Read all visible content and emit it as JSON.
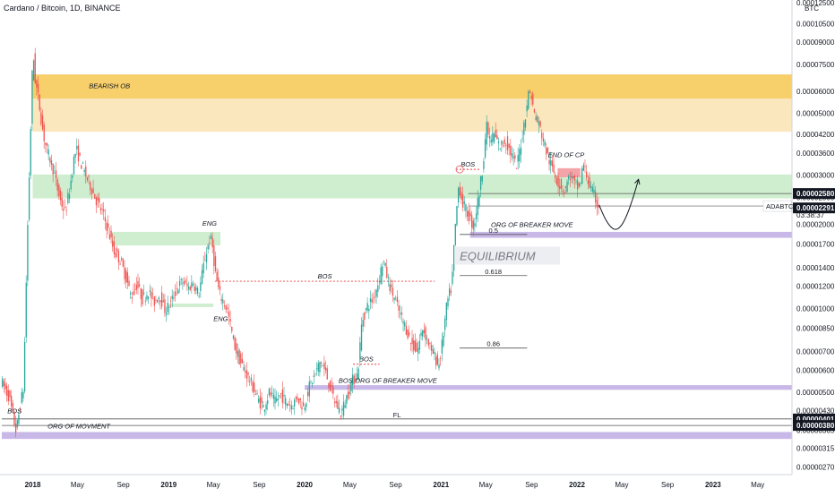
{
  "header": {
    "title": "Cardano / Bitcoin, 1D, BINANCE"
  },
  "axis": {
    "currency": "BTC"
  },
  "chart_data": {
    "type": "candlestick",
    "symbol": "ADABTC",
    "y_scale": "log",
    "x_tick_labels": [
      "2018",
      "May",
      "Sep",
      "2019",
      "May",
      "Sep",
      "2020",
      "May",
      "Sep",
      "2021",
      "May",
      "Sep",
      "2022",
      "May",
      "Sep",
      "2023",
      "May"
    ],
    "x_ticks": [
      "2018-01-01",
      "2018-05-01",
      "2018-09-01",
      "2019-01-01",
      "2019-05-01",
      "2019-09-01",
      "2020-01-01",
      "2020-05-01",
      "2020-09-01",
      "2021-01-01",
      "2021-05-01",
      "2021-09-01",
      "2022-01-01",
      "2022-05-01",
      "2022-09-01",
      "2023-01-01",
      "2023-05-01"
    ],
    "x_range": [
      "2017-10-10",
      "2023-08-01"
    ],
    "y_tick_labels": [
      "0.00012500",
      "0.00010500",
      "0.00009000",
      "0.00007500",
      "0.00006000",
      "0.00005000",
      "0.00004200",
      "0.00003600",
      "0.00003000",
      "0.00002500",
      "0.00002000",
      "0.00001700",
      "0.00001400",
      "0.00001200",
      "0.00001000",
      "0.00000850",
      "0.00000700",
      "0.00000600",
      "0.00000500",
      "0.00000430",
      "0.00000365",
      "0.00000315",
      "0.00000270"
    ],
    "y_range": [
      2.6e-06,
      0.000132
    ],
    "price_labels": [
      {
        "value": "0.00002580",
        "style": "dark"
      },
      {
        "value": "0.00002327",
        "style": "light",
        "symbol": "ADABTC",
        "countdown": "03:38:37"
      },
      {
        "value": "0.00002291",
        "style": "dark"
      },
      {
        "value": "0.00000401",
        "style": "dark"
      },
      {
        "value": "0.00000380",
        "style": "dark"
      }
    ],
    "path": [
      [
        "2017-10-10",
        5.5e-06
      ],
      [
        "2017-11-01",
        4.8e-06
      ],
      [
        "2017-11-20",
        3.6e-06
      ],
      [
        "2017-12-01",
        4.5e-06
      ],
      [
        "2017-12-10",
        5.2e-06
      ],
      [
        "2017-12-20",
        1.8e-05
      ],
      [
        "2017-12-28",
        4e-05
      ],
      [
        "2018-01-04",
        8.5e-05
      ],
      [
        "2018-01-10",
        6.6e-05
      ],
      [
        "2018-01-20",
        5.5e-05
      ],
      [
        "2018-02-01",
        4.2e-05
      ],
      [
        "2018-02-10",
        3.7e-05
      ],
      [
        "2018-02-20",
        3.4e-05
      ],
      [
        "2018-03-01",
        3.1e-05
      ],
      [
        "2018-03-10",
        2.7e-05
      ],
      [
        "2018-03-20",
        2.4e-05
      ],
      [
        "2018-04-01",
        2.2e-05
      ],
      [
        "2018-04-15",
        2.8e-05
      ],
      [
        "2018-04-25",
        3.5e-05
      ],
      [
        "2018-05-01",
        3.7e-05
      ],
      [
        "2018-05-10",
        3.4e-05
      ],
      [
        "2018-05-25",
        3e-05
      ],
      [
        "2018-06-10",
        2.7e-05
      ],
      [
        "2018-06-25",
        2.4e-05
      ],
      [
        "2018-07-10",
        2.2e-05
      ],
      [
        "2018-07-25",
        1.9e-05
      ],
      [
        "2018-08-10",
        1.6e-05
      ],
      [
        "2018-08-25",
        1.5e-05
      ],
      [
        "2018-09-10",
        1.3e-05
      ],
      [
        "2018-09-25",
        1.1e-05
      ],
      [
        "2018-10-10",
        1.22e-05
      ],
      [
        "2018-10-25",
        1.08e-05
      ],
      [
        "2018-11-10",
        1.15e-05
      ],
      [
        "2018-11-25",
        1.05e-05
      ],
      [
        "2018-12-10",
        1.12e-05
      ],
      [
        "2018-12-25",
        9.8e-06
      ],
      [
        "2019-01-10",
        1.05e-05
      ],
      [
        "2019-01-25",
        1.18e-05
      ],
      [
        "2019-02-10",
        1.25e-05
      ],
      [
        "2019-02-25",
        1.18e-05
      ],
      [
        "2019-03-10",
        1.24e-05
      ],
      [
        "2019-03-25",
        1.12e-05
      ],
      [
        "2019-04-10",
        1.5e-05
      ],
      [
        "2019-04-25",
        1.8e-05
      ],
      [
        "2019-05-01",
        1.65e-05
      ],
      [
        "2019-05-10",
        1.3e-05
      ],
      [
        "2019-05-20",
        1.12e-05
      ],
      [
        "2019-06-01",
        1.05e-05
      ],
      [
        "2019-06-10",
        9.8e-06
      ],
      [
        "2019-06-20",
        8.4e-06
      ],
      [
        "2019-07-01",
        7.2e-06
      ],
      [
        "2019-07-15",
        6.4e-06
      ],
      [
        "2019-08-01",
        5.8e-06
      ],
      [
        "2019-08-15",
        5.3e-06
      ],
      [
        "2019-09-01",
        4.7e-06
      ],
      [
        "2019-09-15",
        4.4e-06
      ],
      [
        "2019-10-01",
        5e-06
      ],
      [
        "2019-10-15",
        4.6e-06
      ],
      [
        "2019-11-01",
        4.9e-06
      ],
      [
        "2019-11-15",
        4.6e-06
      ],
      [
        "2019-12-01",
        4.5e-06
      ],
      [
        "2019-12-15",
        4.8e-06
      ],
      [
        "2020-01-01",
        4.4e-06
      ],
      [
        "2020-01-15",
        5.2e-06
      ],
      [
        "2020-02-01",
        5.8e-06
      ],
      [
        "2020-02-15",
        6.5e-06
      ],
      [
        "2020-03-01",
        5.8e-06
      ],
      [
        "2020-03-12",
        5.2e-06
      ],
      [
        "2020-03-25",
        4.6e-06
      ],
      [
        "2020-04-10",
        4.2e-06
      ],
      [
        "2020-04-25",
        4.8e-06
      ],
      [
        "2020-05-10",
        5.5e-06
      ],
      [
        "2020-05-25",
        5.8e-06
      ],
      [
        "2020-06-05",
        9e-06
      ],
      [
        "2020-06-20",
        1.02e-05
      ],
      [
        "2020-07-05",
        1.08e-05
      ],
      [
        "2020-07-20",
        1.25e-05
      ],
      [
        "2020-08-01",
        1.5e-05
      ],
      [
        "2020-08-15",
        1.25e-05
      ],
      [
        "2020-09-01",
        1.08e-05
      ],
      [
        "2020-09-15",
        9.5e-06
      ],
      [
        "2020-10-01",
        8.5e-06
      ],
      [
        "2020-10-15",
        7.5e-06
      ],
      [
        "2020-11-01",
        7e-06
      ],
      [
        "2020-11-15",
        8.5e-06
      ],
      [
        "2020-12-01",
        7.5e-06
      ],
      [
        "2020-12-15",
        6.8e-06
      ],
      [
        "2020-12-28",
        6.2e-06
      ],
      [
        "2021-01-05",
        7.2e-06
      ],
      [
        "2021-01-20",
        1.05e-05
      ],
      [
        "2021-02-01",
        1.2e-05
      ],
      [
        "2021-02-10",
        1.9e-05
      ],
      [
        "2021-02-20",
        2.8e-05
      ],
      [
        "2021-03-01",
        2.4e-05
      ],
      [
        "2021-03-15",
        2.2e-05
      ],
      [
        "2021-04-01",
        1.95e-05
      ],
      [
        "2021-04-15",
        2.55e-05
      ],
      [
        "2021-04-25",
        3.2e-05
      ],
      [
        "2021-05-05",
        4.5e-05
      ],
      [
        "2021-05-15",
        4e-05
      ],
      [
        "2021-05-25",
        4.2e-05
      ],
      [
        "2021-06-10",
        3.8e-05
      ],
      [
        "2021-06-25",
        4e-05
      ],
      [
        "2021-07-10",
        3.6e-05
      ],
      [
        "2021-07-25",
        3.2e-05
      ],
      [
        "2021-08-10",
        4.2e-05
      ],
      [
        "2021-08-25",
        5.8e-05
      ],
      [
        "2021-09-01",
        6e-05
      ],
      [
        "2021-09-10",
        5e-05
      ],
      [
        "2021-09-25",
        4.5e-05
      ],
      [
        "2021-10-05",
        4e-05
      ],
      [
        "2021-10-20",
        3.4e-05
      ],
      [
        "2021-11-01",
        3.1e-05
      ],
      [
        "2021-11-15",
        2.8e-05
      ],
      [
        "2021-12-01",
        2.65e-05
      ],
      [
        "2021-12-15",
        3e-05
      ],
      [
        "2021-12-30",
        2.75e-05
      ],
      [
        "2022-01-10",
        2.7e-05
      ],
      [
        "2022-01-20",
        3.3e-05
      ],
      [
        "2022-02-01",
        2.9e-05
      ],
      [
        "2022-02-10",
        2.65e-05
      ],
      [
        "2022-02-20",
        2.52e-05
      ],
      [
        "2022-02-28",
        2.327e-05
      ]
    ],
    "zones": [
      {
        "label": "BEARISH OB",
        "color": "#f7cf6b",
        "from": "2018-01-01",
        "to": "2023-08-01",
        "y": [
          5.65e-05,
          6.9e-05
        ]
      },
      {
        "label": "",
        "color": "#fbe7bd",
        "from": "2018-01-01",
        "to": "2023-08-01",
        "y": [
          4.3e-05,
          5.65e-05
        ]
      },
      {
        "label": "",
        "color": "#cfeecf",
        "from": "2018-01-01",
        "to": "2023-08-01",
        "y": [
          2.48e-05,
          3.02e-05
        ]
      },
      {
        "label": "",
        "color": "#cfeecf",
        "from": "2018-08-01",
        "to": "2019-05-20",
        "y": [
          1.68e-05,
          1.88e-05
        ]
      },
      {
        "label": "",
        "color": "#cfeecf",
        "from": "2019-01-01",
        "to": "2019-05-01",
        "y": [
          1.01e-05,
          1.04e-05
        ]
      },
      {
        "label": "",
        "color": "#f4a3a8",
        "from": "2021-11-10",
        "to": "2022-01-10",
        "y": [
          2.95e-05,
          3.18e-05
        ]
      },
      {
        "label": "",
        "color": "#c8b8e8",
        "from": "2021-03-20",
        "to": "2023-08-01",
        "y": [
          1.79e-05,
          1.88e-05
        ]
      },
      {
        "label": "",
        "color": "#c8b8e8",
        "from": "2020-01-01",
        "to": "2023-08-01",
        "y": [
          5.1e-06,
          5.3e-06
        ]
      },
      {
        "label": "",
        "color": "#c8b8e8",
        "from": "2017-10-10",
        "to": "2023-08-01",
        "y": [
          3.4e-06,
          3.6e-06
        ]
      }
    ],
    "levels": [
      {
        "label": "FL",
        "from": "2017-10-10",
        "to": "2023-08-01",
        "y": 4.01e-06,
        "color": "#555555"
      },
      {
        "label": "",
        "from": "2017-10-10",
        "to": "2023-08-01",
        "y": 3.8e-06,
        "color": "#555555"
      },
      {
        "label": "",
        "from": "2021-03-15",
        "to": "2023-08-01",
        "y": 2.58e-05,
        "color": "#555555"
      },
      {
        "label": "",
        "from": "2021-03-15",
        "to": "2023-08-01",
        "y": 2.327e-05,
        "color": "#888888"
      },
      {
        "label": "0.5",
        "from": "2021-02-20",
        "to": "2021-08-20",
        "y": 1.84e-05,
        "color": "#555555"
      },
      {
        "label": "0.618",
        "from": "2021-02-20",
        "to": "2021-08-20",
        "y": 1.31e-05,
        "color": "#555555"
      },
      {
        "label": "0.86",
        "from": "2021-02-20",
        "to": "2021-08-20",
        "y": 7.2e-06,
        "color": "#555555"
      }
    ],
    "bos_lines": [
      {
        "label": "BOS",
        "from": "2019-05-05",
        "to": "2020-12-15",
        "y": 1.25e-05
      },
      {
        "label": "BOS",
        "from": "2020-05-10",
        "to": "2020-07-20",
        "y": 6.3e-06
      },
      {
        "label": "BOS",
        "from": "2021-02-10",
        "to": "2021-04-15",
        "y": 3.15e-05
      }
    ],
    "annotations": [
      {
        "text": "BEARISH OB",
        "x": "2018-06-01",
        "y": 6.15e-05
      },
      {
        "text": "ENG",
        "x": "2019-04-01",
        "y": 1.98e-05
      },
      {
        "text": "ENG",
        "x": "2019-05-01",
        "y": 9e-06
      },
      {
        "text": "BOS",
        "x": "2017-10-25",
        "y": 4.2e-06
      },
      {
        "text": "BOS",
        "x": "2020-04-01",
        "y": 5.4e-06
      },
      {
        "text": "END OF CP",
        "x": "2021-10-15",
        "y": 3.48e-05
      },
      {
        "text": "ORG OF BREAKER MOVE",
        "x": "2021-05-15",
        "y": 1.96e-05
      },
      {
        "text": "ORG OF BREAKER MOVE",
        "x": "2020-05-15",
        "y": 5.4e-06
      },
      {
        "text": "ORG OF MOVMENT",
        "x": "2018-02-10",
        "y": 3.7e-06
      },
      {
        "text": "EQUILIBRIUM",
        "x": "2021-02-20",
        "y": 1.5e-05
      }
    ],
    "projection": [
      [
        "2022-03-01",
        2.35e-05
      ],
      [
        "2022-03-20",
        2.05e-05
      ],
      [
        "2022-04-10",
        1.9e-05
      ],
      [
        "2022-04-28",
        1.95e-05
      ],
      [
        "2022-05-15",
        2.15e-05
      ],
      [
        "2022-06-01",
        2.5e-05
      ],
      [
        "2022-06-15",
        2.9e-05
      ]
    ],
    "marker_circle": {
      "x": "2021-02-20",
      "y": 3.15e-05
    }
  }
}
